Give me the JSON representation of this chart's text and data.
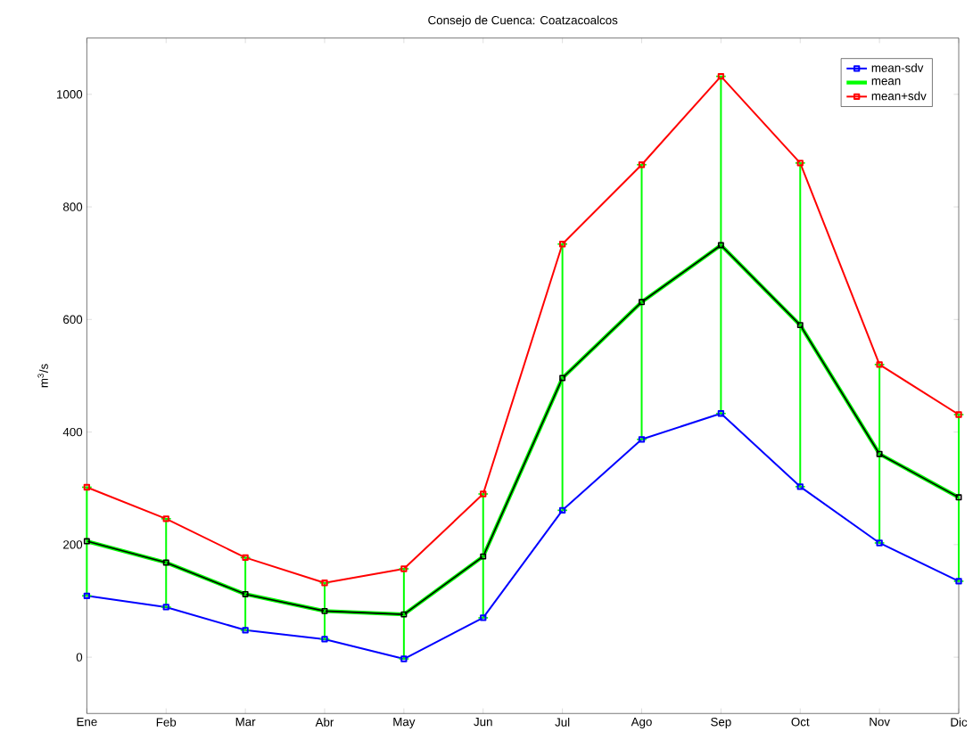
{
  "chart_data": {
    "type": "line",
    "title": "Consejo de Cuenca: Coatzacoalcos",
    "ylabel": "m$^{3}$/s",
    "categories": [
      "Ene",
      "Feb",
      "Mar",
      "Abr",
      "May",
      "Jun",
      "Jul",
      "Ago",
      "Sep",
      "Oct",
      "Nov",
      "Dic"
    ],
    "series": [
      {
        "name": "mean-sdv",
        "color": "#0000ff",
        "marker": "square",
        "values": [
          109,
          89,
          48,
          32,
          -3,
          70,
          261,
          387,
          433,
          303,
          203,
          135
        ]
      },
      {
        "name": "mean",
        "color": "#00ff00",
        "marker": "none",
        "values": [
          206,
          168,
          112,
          82,
          76,
          179,
          496,
          631,
          732,
          590,
          361,
          284
        ],
        "errors": [
          [
            109,
            302
          ],
          [
            89,
            246
          ],
          [
            48,
            177
          ],
          [
            32,
            132
          ],
          [
            -3,
            157
          ],
          [
            70,
            290
          ],
          [
            261,
            734
          ],
          [
            387,
            875
          ],
          [
            433,
            1032
          ],
          [
            303,
            878
          ],
          [
            203,
            520
          ],
          [
            135,
            431
          ]
        ]
      },
      {
        "name": "mean+sdv",
        "color": "#ff0000",
        "marker": "square",
        "values": [
          302,
          246,
          177,
          132,
          157,
          290,
          734,
          875,
          1032,
          878,
          520,
          431
        ]
      },
      {
        "color": "#000000",
        "marker": "square",
        "values": [
          206,
          168,
          112,
          82,
          76,
          179,
          496,
          631,
          732,
          590,
          361,
          284
        ]
      }
    ],
    "ylim": [
      -100,
      1100
    ],
    "yticks": [
      0,
      200,
      400,
      600,
      800,
      1000
    ],
    "grid": false,
    "legend": "top right"
  }
}
